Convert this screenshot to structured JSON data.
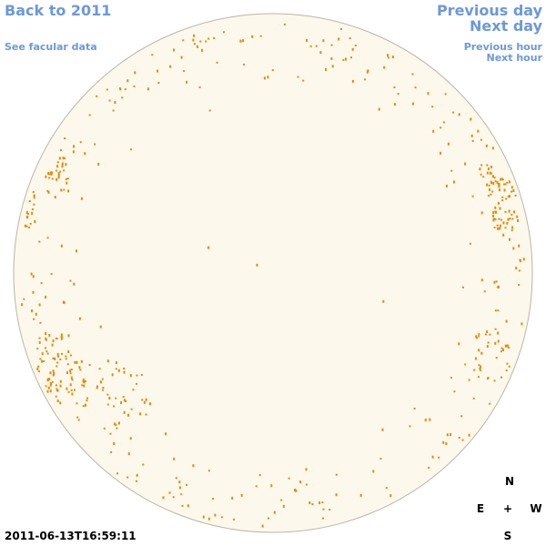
{
  "nav": {
    "back": "Back to 2011",
    "facular": "See facular data",
    "previous_day": "Previous day",
    "next_day": "Next day",
    "previous_hour": "Previous hour",
    "next_hour": "Next hour"
  },
  "compass": {
    "north": "N",
    "east": "E",
    "center": "+",
    "west": "W",
    "south": "S"
  },
  "timestamp": "2011-06-13T16:59:11"
}
